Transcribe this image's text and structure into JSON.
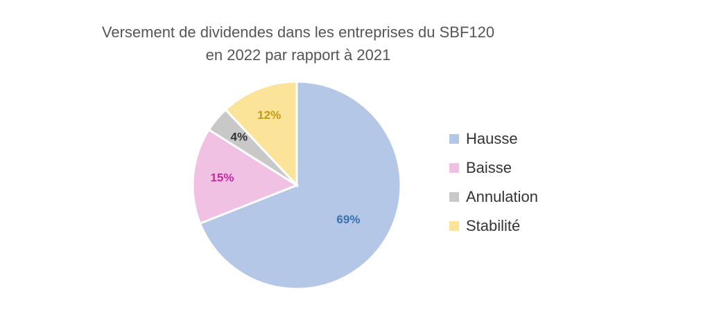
{
  "chart_data": {
    "type": "pie",
    "title_lines": [
      "Versement de dividendes dans les entreprises du SBF120",
      "en 2022 par rapport à 2021"
    ],
    "categories": [
      "Hausse",
      "Baisse",
      "Annulation",
      "Stabilité"
    ],
    "values": [
      69,
      15,
      4,
      12
    ],
    "labels": [
      "69%",
      "15%",
      "4%",
      "12%"
    ],
    "colors": [
      "#b4c7e7",
      "#f0c1e3",
      "#c8c8c8",
      "#fbe49a"
    ],
    "label_colors": [
      "#3a6fb0",
      "#c32a9e",
      "#333333",
      "#c49a14"
    ],
    "legend_position": "right",
    "start_angle_deg": 0,
    "direction": "clockwise"
  }
}
